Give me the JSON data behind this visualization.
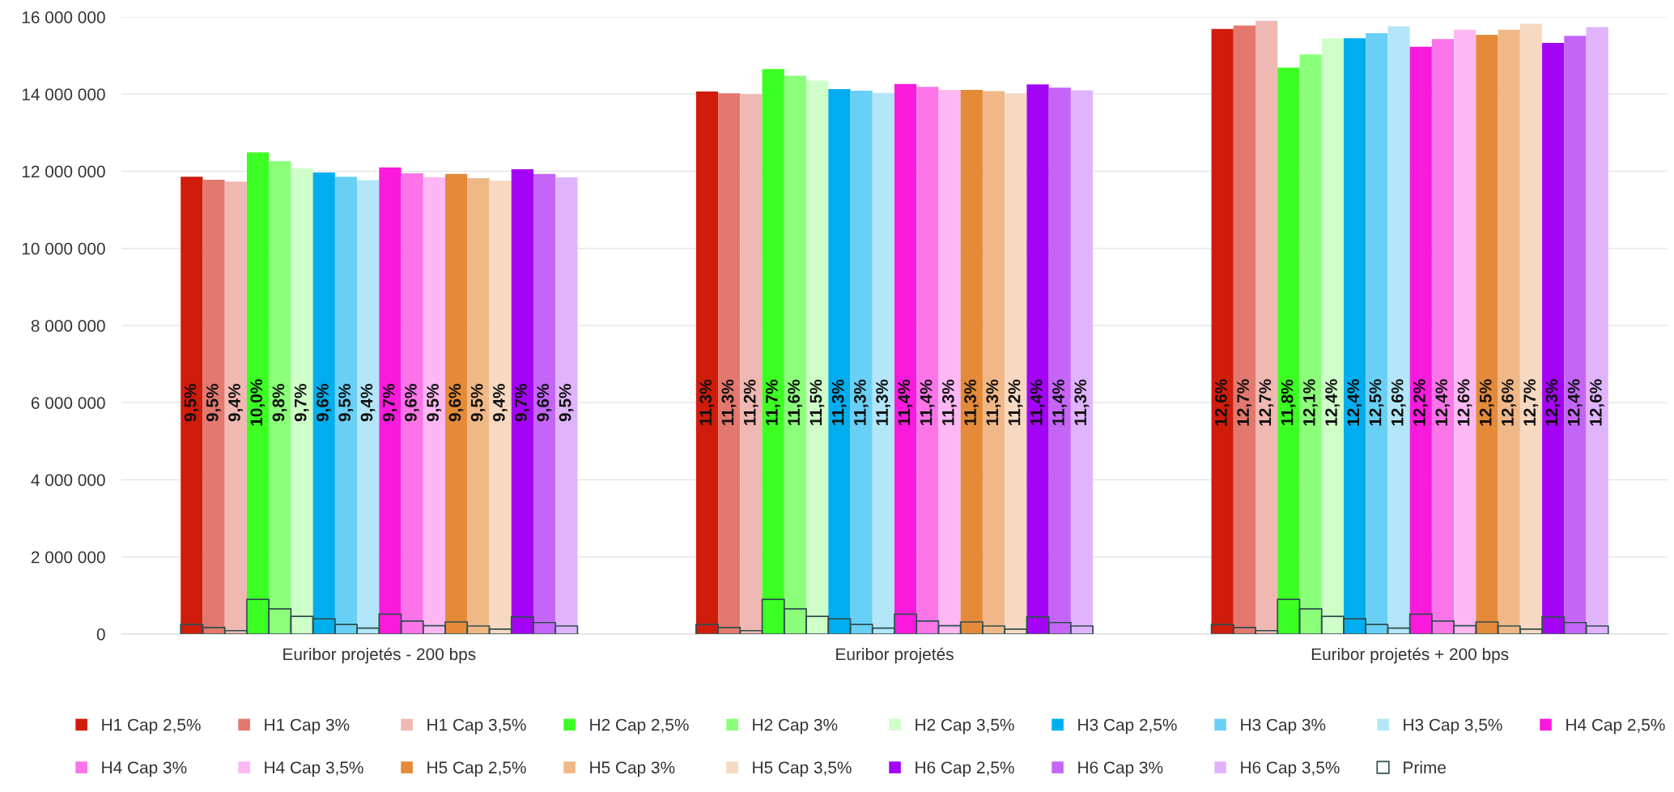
{
  "chart_data": {
    "type": "bar",
    "categories": [
      "Euribor projetés - 200 bps",
      "Euribor projetés",
      "Euribor projetés + 200 bps"
    ],
    "ylim": [
      0,
      16000000
    ],
    "yticks": [
      {
        "value": 0,
        "label": "0"
      },
      {
        "value": 2000000,
        "label": "2 000 000"
      },
      {
        "value": 4000000,
        "label": "4 000 000"
      },
      {
        "value": 6000000,
        "label": "6 000 000"
      },
      {
        "value": 8000000,
        "label": "8 000 000"
      },
      {
        "value": 10000000,
        "label": "10 000 000"
      },
      {
        "value": 12000000,
        "label": "12 000 000"
      },
      {
        "value": 14000000,
        "label": "14 000 000"
      },
      {
        "value": 16000000,
        "label": "16 000 000"
      }
    ],
    "grid": "y",
    "legend": "bottom",
    "annotations": [
      "9,5%",
      "9,5%",
      "9,4%",
      "10,0%",
      "9,8%",
      "9,7%",
      "9,6%",
      "9,5%",
      "9,4%",
      "9,7%",
      "9,6%",
      "9,5%",
      "9,6%",
      "9,5%",
      "9,4%",
      "9,7%",
      "9,6%",
      "9,5%",
      "11,3%",
      "11,3%",
      "11,2%",
      "11,7%",
      "11,6%",
      "11,5%",
      "11,3%",
      "11,3%",
      "11,3%",
      "11,4%",
      "11,4%",
      "11,3%",
      "11,3%",
      "11,3%",
      "11,2%",
      "11,4%",
      "11,4%",
      "11,3%",
      "12,6%",
      "12,7%",
      "12,7%",
      "11,8%",
      "12,1%",
      "12,4%",
      "12,4%",
      "12,5%",
      "12,6%",
      "12,2%",
      "12,4%",
      "12,6%",
      "12,5%",
      "12,6%",
      "12,7%",
      "12,3%",
      "12,4%",
      "12,6%"
    ],
    "series": [
      {
        "name": "H1 Cap 2,5%",
        "color": "#d01c0b",
        "values": [
          11860000,
          14070000,
          15690000
        ]
      },
      {
        "name": "H1 Cap 3%",
        "color": "#e3786e",
        "values": [
          11780000,
          14020000,
          15780000
        ]
      },
      {
        "name": "H1 Cap 3,5%",
        "color": "#f0b8b2",
        "values": [
          11730000,
          14000000,
          15900000
        ]
      },
      {
        "name": "H2 Cap 2,5%",
        "color": "#3cff23",
        "values": [
          12490000,
          14650000,
          14690000
        ]
      },
      {
        "name": "H2 Cap 3%",
        "color": "#8bff7a",
        "values": [
          12260000,
          14480000,
          15030000
        ]
      },
      {
        "name": "H2 Cap 3,5%",
        "color": "#cfffc8",
        "values": [
          12080000,
          14350000,
          15450000
        ]
      },
      {
        "name": "H3 Cap 2,5%",
        "color": "#00aeef",
        "values": [
          11970000,
          14130000,
          15450000
        ]
      },
      {
        "name": "H3 Cap 3%",
        "color": "#69d0f5",
        "values": [
          11860000,
          14090000,
          15580000
        ]
      },
      {
        "name": "H3 Cap 3,5%",
        "color": "#b3e6f8",
        "values": [
          11770000,
          14030000,
          15760000
        ]
      },
      {
        "name": "H4 Cap 2,5%",
        "color": "#fa1adc",
        "values": [
          12100000,
          14260000,
          15230000
        ]
      },
      {
        "name": "H4 Cap 3%",
        "color": "#fb74e8",
        "values": [
          11950000,
          14190000,
          15430000
        ]
      },
      {
        "name": "H4 Cap 3,5%",
        "color": "#fdb8f3",
        "values": [
          11850000,
          14110000,
          15670000
        ]
      },
      {
        "name": "H5 Cap 2,5%",
        "color": "#e48a38",
        "values": [
          11930000,
          14110000,
          15540000
        ]
      },
      {
        "name": "H5 Cap 3%",
        "color": "#f0b887",
        "values": [
          11820000,
          14080000,
          15670000
        ]
      },
      {
        "name": "H5 Cap 3,5%",
        "color": "#f6d9c0",
        "values": [
          11760000,
          14020000,
          15820000
        ]
      },
      {
        "name": "H6 Cap 2,5%",
        "color": "#a304f6",
        "values": [
          12050000,
          14250000,
          15330000
        ]
      },
      {
        "name": "H6 Cap 3%",
        "color": "#c465f8",
        "values": [
          11930000,
          14170000,
          15510000
        ]
      },
      {
        "name": "H6 Cap 3,5%",
        "color": "#e0b4fc",
        "values": [
          11840000,
          14100000,
          15740000
        ]
      },
      {
        "name": "Prime",
        "color": "#2f4f4f",
        "values": [
          250000,
          250000,
          250000
        ]
      },
      {
        "color": "#2f4f4f",
        "values": [
          170000,
          170000,
          170000
        ]
      },
      {
        "color": "#2f4f4f",
        "values": [
          90000,
          90000,
          90000
        ]
      },
      {
        "color": "#2f4f4f",
        "values": [
          900000,
          900000,
          900000
        ]
      },
      {
        "color": "#2f4f4f",
        "values": [
          655000,
          655000,
          655000
        ]
      },
      {
        "color": "#2f4f4f",
        "values": [
          460000,
          460000,
          460000
        ]
      },
      {
        "color": "#2f4f4f",
        "values": [
          395000,
          395000,
          395000
        ]
      },
      {
        "color": "#2f4f4f",
        "values": [
          250000,
          250000,
          250000
        ]
      },
      {
        "color": "#2f4f4f",
        "values": [
          155000,
          155000,
          155000
        ]
      },
      {
        "color": "#2f4f4f",
        "values": [
          517000,
          517000,
          517000
        ]
      },
      {
        "color": "#2f4f4f",
        "values": [
          340000,
          340000,
          340000
        ]
      },
      {
        "color": "#2f4f4f",
        "values": [
          218000,
          218000,
          218000
        ]
      },
      {
        "color": "#2f4f4f",
        "values": [
          315000,
          315000,
          315000
        ]
      },
      {
        "color": "#2f4f4f",
        "values": [
          210000,
          210000,
          210000
        ]
      },
      {
        "color": "#2f4f4f",
        "values": [
          130000,
          130000,
          130000
        ]
      },
      {
        "color": "#2f4f4f",
        "values": [
          445000,
          445000,
          445000
        ]
      },
      {
        "color": "#2f4f4f",
        "values": [
          300000,
          300000,
          300000
        ]
      },
      {
        "color": "#2f4f4f",
        "values": [
          210000,
          210000,
          210000
        ]
      }
    ]
  }
}
